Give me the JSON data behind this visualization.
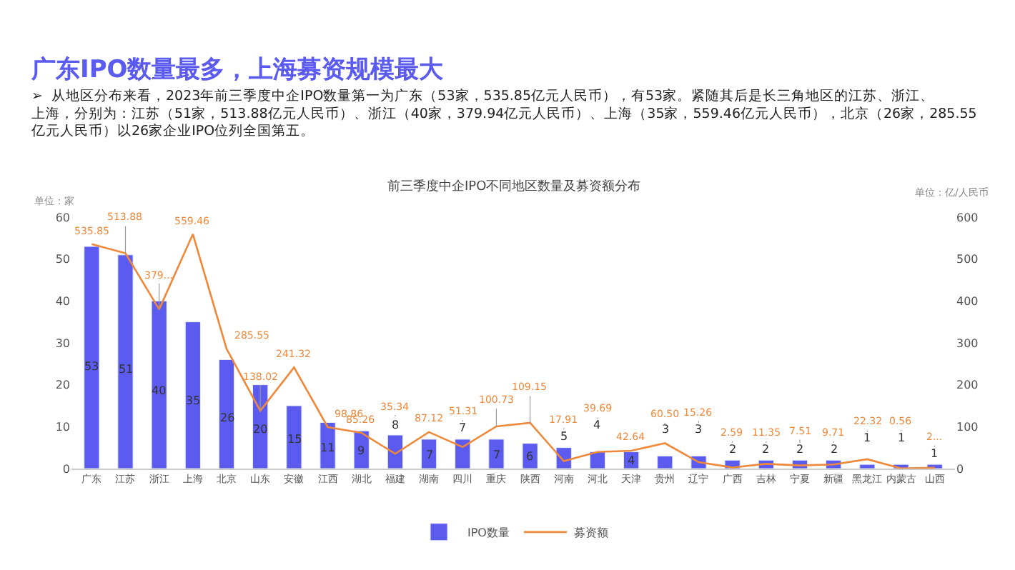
{
  "chart_data": {
    "type": "bar",
    "title": "广东IPO数量最多，上海募资规模最大",
    "subtitle": "➢  从地区分布来看，2023年前三季度中企IPO数量第一为广东（53家，535.85亿元人民币），有53家。紧随其后是长三角地区的江苏、浙江、上海，分别为：江苏（51家，513.88亿元人民币）、浙江（40家，379.94亿元人民币）、上海（35家，559.46亿元人民币），北京（26家，285.55亿元人民币）以26家企业IPO位列全国第五。",
    "annotations": [
      "前三季度中企IPO不同地区数量及募资额分布"
    ],
    "ylabel": "单位：家",
    "y2label": "单位：亿/人民币",
    "categories": [
      "广东",
      "江苏",
      "浙江",
      "上海",
      "北京",
      "山东",
      "安徽",
      "江西",
      "湖北",
      "福建",
      "湖南",
      "四川",
      "重庆",
      "陕西",
      "河南",
      "河北",
      "天津",
      "贵州",
      "辽宁",
      "广西",
      "吉林",
      "宁夏",
      "新疆",
      "黑龙江",
      "内蒙古",
      "山西"
    ],
    "series": [
      {
        "name": "IPO数量",
        "color": "#5b5bf0",
        "data_labels": true,
        "values": [
          53,
          51,
          40,
          35,
          26,
          20,
          15,
          11,
          9,
          8,
          7,
          7,
          7,
          6,
          5,
          4,
          4,
          3,
          3,
          2,
          2,
          2,
          2,
          1,
          1,
          1
        ]
      },
      {
        "name": "募资额",
        "type": "line",
        "axis": "y2",
        "color": "#f0883a",
        "marker": "none",
        "values": [
          535.85,
          513.88,
          379.94,
          559.46,
          285.55,
          138.02,
          241.32,
          98.86,
          85.26,
          35.34,
          87.12,
          51.31,
          100.73,
          109.15,
          17.91,
          39.69,
          42.64,
          60.5,
          15.26,
          2.59,
          11.35,
          7.51,
          9.71,
          22.32,
          0.56,
          2
        ],
        "value_labels": [
          "535.85",
          "513.88",
          "379...",
          "559.46",
          "285.55",
          "138.02",
          "241.32",
          "98.86",
          "85.26",
          "35.34",
          "87.12",
          "51.31",
          "100.73",
          "109.15",
          "17.91",
          "39.69",
          "42.64",
          "60.50",
          "15.26",
          "2.59",
          "11.35",
          "7.51",
          "9.71",
          "22.32",
          "0.56",
          "2..."
        ]
      }
    ],
    "ylim": [
      0,
      60
    ],
    "yticks": [
      0,
      10,
      20,
      30,
      40,
      50,
      60
    ],
    "y2lim": [
      0,
      600
    ],
    "y2ticks": [
      0,
      100,
      200,
      300,
      400,
      500,
      600
    ],
    "legend": "bottom"
  }
}
